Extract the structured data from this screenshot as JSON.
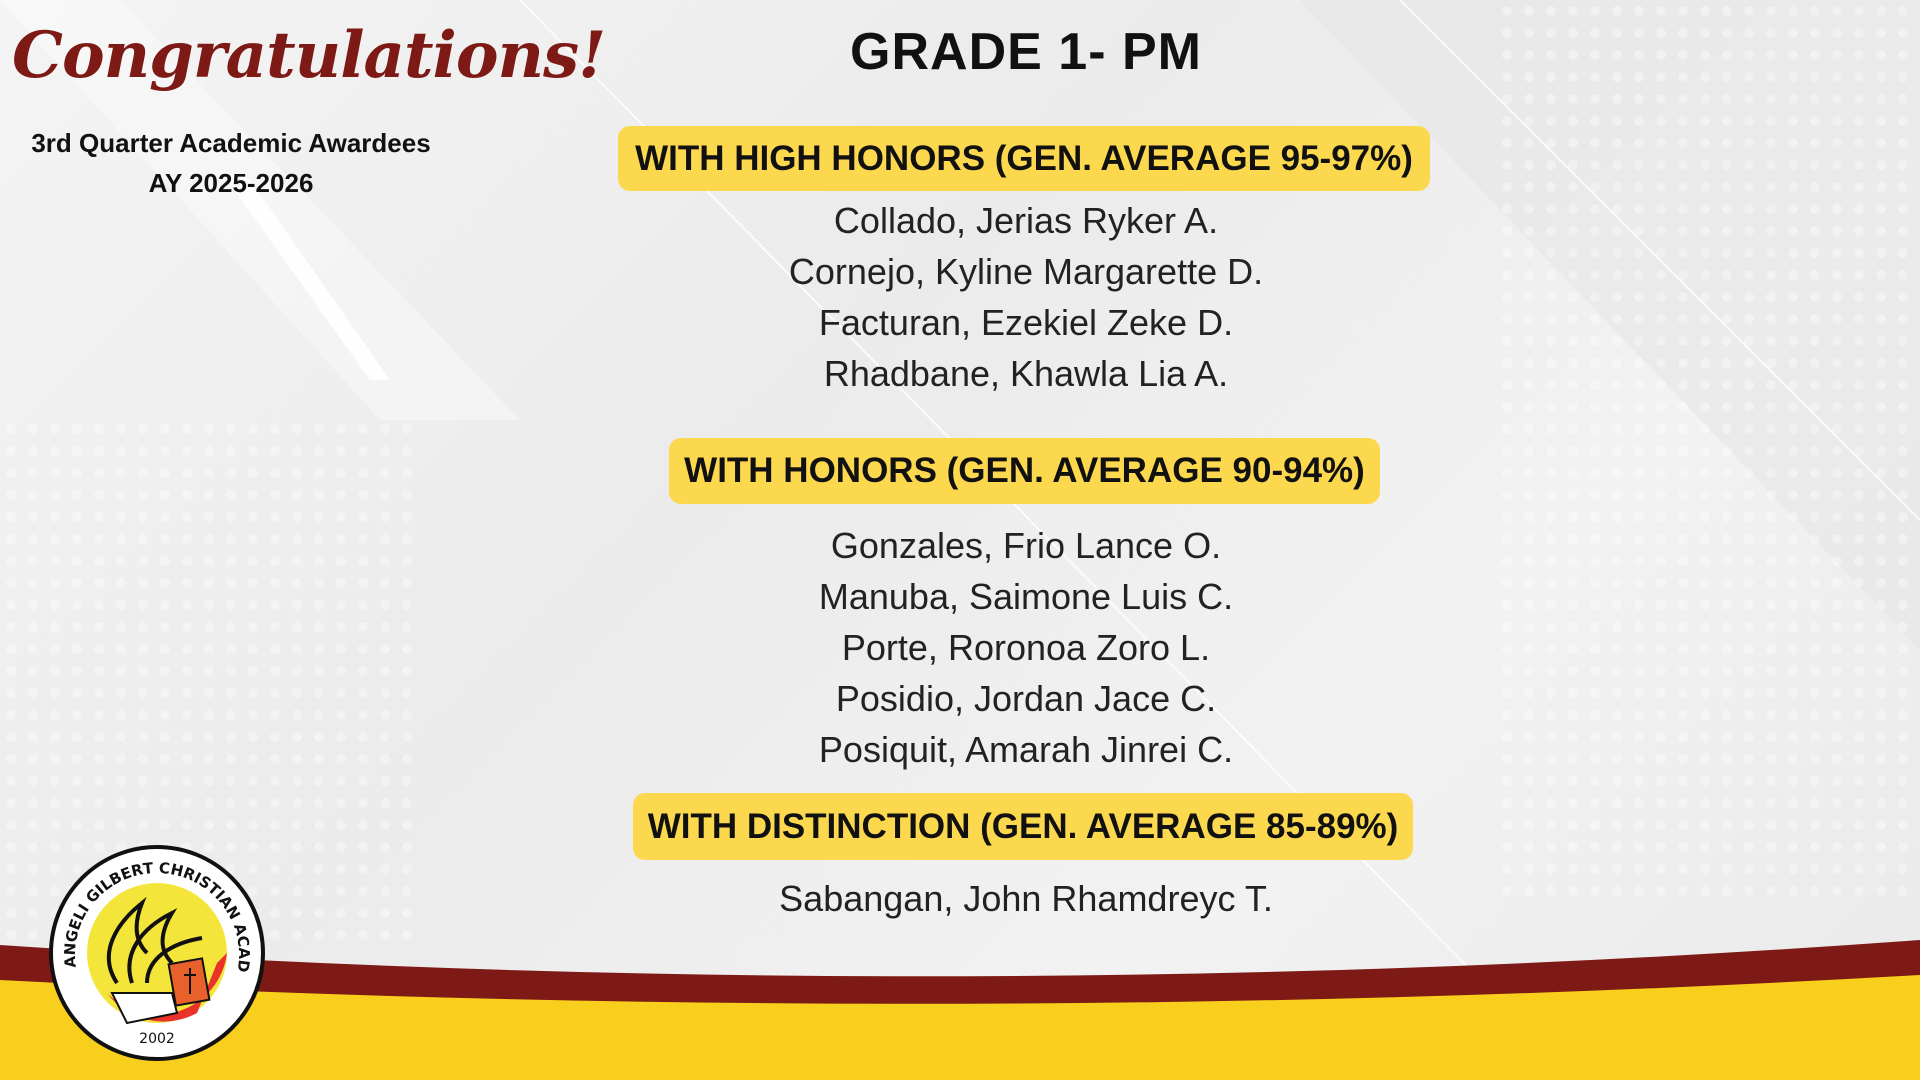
{
  "header": {
    "congratulations": "Congratulations!",
    "subtitle": "3rd Quarter Academic Awardees",
    "academic_year": "AY 2025-2026",
    "title": "GRADE 1- PM"
  },
  "sections": [
    {
      "label": "WITH HIGH HONORS (GEN. AVERAGE 95-97%)",
      "names": [
        "Collado, Jerias Ryker A.",
        "Cornejo, Kyline Margarette D.",
        "Facturan, Ezekiel Zeke D.",
        "Rhadbane, Khawla Lia A."
      ]
    },
    {
      "label": "WITH HONORS (GEN. AVERAGE 90-94%)",
      "names": [
        "Gonzales, Frio Lance O.",
        "Manuba, Saimone Luis C.",
        "Porte, Roronoa Zoro L.",
        "Posidio, Jordan Jace C.",
        "Posiquit, Amarah Jinrei C."
      ]
    },
    {
      "label": "WITH DISTINCTION (GEN. AVERAGE 85-89%)",
      "names": [
        "Sabangan, John Rhamdreyc T."
      ]
    }
  ],
  "logo": {
    "text": "ANGELI GILBERT CHRISTIAN ACADEMY",
    "year": "2002"
  },
  "colors": {
    "maroon": "#7d1a16",
    "yellow": "#fcd84e",
    "footer_yellow": "#f9cf1d"
  }
}
